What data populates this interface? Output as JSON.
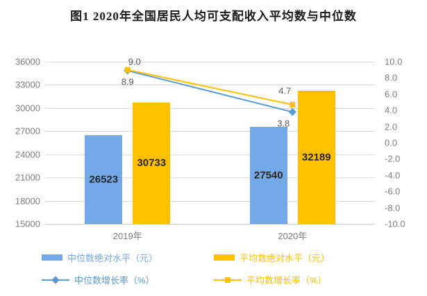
{
  "title": "图1  2020年全国居民人均可支配收入平均数与中位数",
  "chart_data": {
    "type": "bar+line",
    "title": "图1  2020年全国居民人均可支配收入平均数与中位数",
    "categories": [
      "2019年",
      "2020年"
    ],
    "bar_series": [
      {
        "name": "中位数绝对水平（元）",
        "values": [
          26523,
          27540
        ],
        "color": "#74a9e8",
        "labels": [
          "26523",
          "27540"
        ]
      },
      {
        "name": "平均数绝对水平（元）",
        "values": [
          30733,
          32189
        ],
        "color": "#ffc000",
        "labels": [
          "30733",
          "32189"
        ]
      }
    ],
    "line_series": [
      {
        "name": "中位数增长率（%）",
        "values": [
          8.9,
          3.8
        ],
        "color": "#5b9bd5",
        "marker": "diamond",
        "labels": [
          "8.9",
          "3.8"
        ]
      },
      {
        "name": "平均数增长率（%）",
        "values": [
          9.0,
          4.7
        ],
        "color": "#ffc000",
        "marker": "square",
        "labels": [
          "9.0",
          "4.7"
        ]
      }
    ],
    "left_axis": {
      "min": 15000,
      "max": 36000,
      "step": 3000,
      "tick_labels": [
        "36000",
        "33000",
        "30000",
        "27000",
        "24000",
        "21000",
        "18000",
        "15000"
      ]
    },
    "right_axis": {
      "min": -10,
      "max": 10,
      "step": 2,
      "tick_labels": [
        "10.0",
        "8.0",
        "6.0",
        "4.0",
        "2.0",
        "0.0",
        "-2.0",
        "-4.0",
        "-6.0",
        "-8.0",
        "-10.0"
      ]
    },
    "grid": "horizontal",
    "legend_position": "bottom"
  },
  "legend": {
    "items": [
      {
        "label": "中位数绝对水平（元）",
        "type": "bar",
        "color": "#74a9e8"
      },
      {
        "label": "平均数绝对水平（元）",
        "type": "bar",
        "color": "#ffc000"
      },
      {
        "label": "中位数增长率（%）",
        "type": "line",
        "color": "#5b9bd5",
        "marker": "diamond"
      },
      {
        "label": "平均数增长率（%）",
        "type": "line",
        "color": "#ffc000",
        "marker": "square"
      }
    ]
  },
  "colors": {
    "median_bar": "#74a9e8",
    "average_bar": "#ffc000",
    "median_line": "#5b9bd5",
    "average_line": "#ffc000",
    "gridline": "#dcdcdc",
    "axis_text": "#7f7f7f",
    "point_label_text": "#595959",
    "bar_label_text": "#262626"
  }
}
